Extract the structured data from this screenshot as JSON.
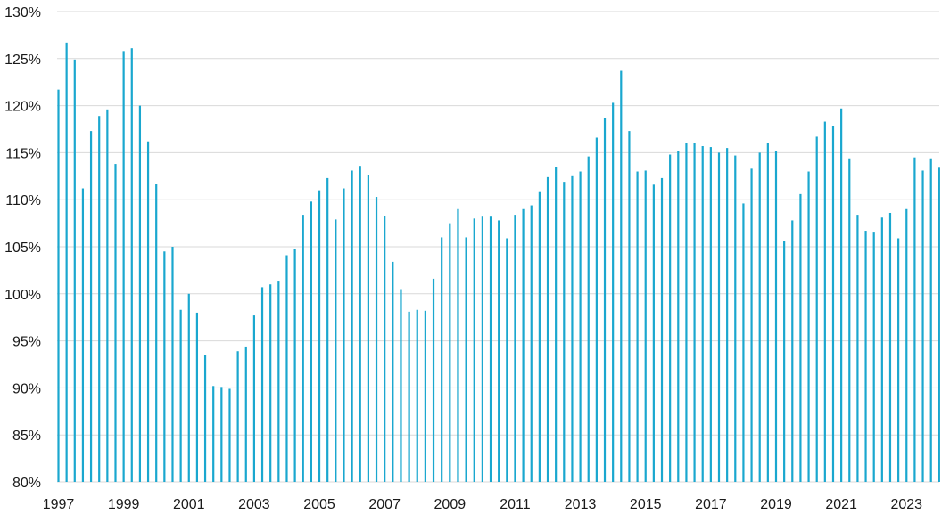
{
  "chart_data": {
    "type": "bar",
    "title": "",
    "xlabel": "",
    "ylabel": "",
    "ylim": [
      80,
      130
    ],
    "grid": true,
    "bar_color": "#1aa7cf",
    "grid_color": "#d9d9d9",
    "y_ticks": [
      {
        "value": 80,
        "label": "80%"
      },
      {
        "value": 85,
        "label": "85%"
      },
      {
        "value": 90,
        "label": "90%"
      },
      {
        "value": 95,
        "label": "95%"
      },
      {
        "value": 100,
        "label": "100%"
      },
      {
        "value": 105,
        "label": "105%"
      },
      {
        "value": 110,
        "label": "110%"
      },
      {
        "value": 115,
        "label": "115%"
      },
      {
        "value": 120,
        "label": "120%"
      },
      {
        "value": 125,
        "label": "125%"
      },
      {
        "value": 130,
        "label": "130%"
      }
    ],
    "x_start": 1997,
    "x_end": 2024,
    "x_ticks": [
      "1997",
      "1999",
      "2001",
      "2003",
      "2005",
      "2007",
      "2009",
      "2011",
      "2013",
      "2015",
      "2017",
      "2019",
      "2021",
      "2023"
    ],
    "values": [
      121.7,
      126.7,
      124.9,
      111.2,
      117.3,
      118.9,
      119.6,
      113.8,
      125.8,
      126.1,
      120.0,
      116.2,
      111.7,
      104.5,
      105.0,
      98.3,
      100.0,
      98.0,
      93.5,
      90.2,
      90.1,
      89.9,
      93.9,
      94.4,
      97.7,
      100.7,
      101.0,
      101.3,
      104.1,
      104.8,
      108.4,
      109.8,
      111.0,
      112.3,
      107.9,
      111.2,
      113.1,
      113.6,
      112.6,
      110.3,
      108.3,
      103.4,
      100.5,
      98.1,
      98.3,
      98.2,
      101.6,
      106.0,
      107.5,
      109.0,
      106.0,
      108.0,
      108.2,
      108.2,
      107.8,
      105.9,
      108.4,
      109.0,
      109.4,
      110.9,
      112.4,
      113.5,
      111.9,
      112.5,
      113.0,
      114.6,
      116.6,
      118.7,
      120.3,
      123.7,
      117.3,
      113.0,
      113.1,
      111.6,
      112.3,
      114.8,
      115.2,
      116.0,
      116.0,
      115.7,
      115.6,
      115.0,
      115.5,
      114.7,
      109.6,
      113.3,
      115.0,
      116.0,
      115.2,
      105.6,
      107.8,
      110.6,
      113.0,
      116.7,
      118.3,
      117.8,
      119.7,
      114.4,
      108.4,
      106.7,
      106.6,
      108.1,
      108.6,
      105.9,
      109.0,
      114.5,
      113.1,
      114.4,
      113.4
    ]
  }
}
